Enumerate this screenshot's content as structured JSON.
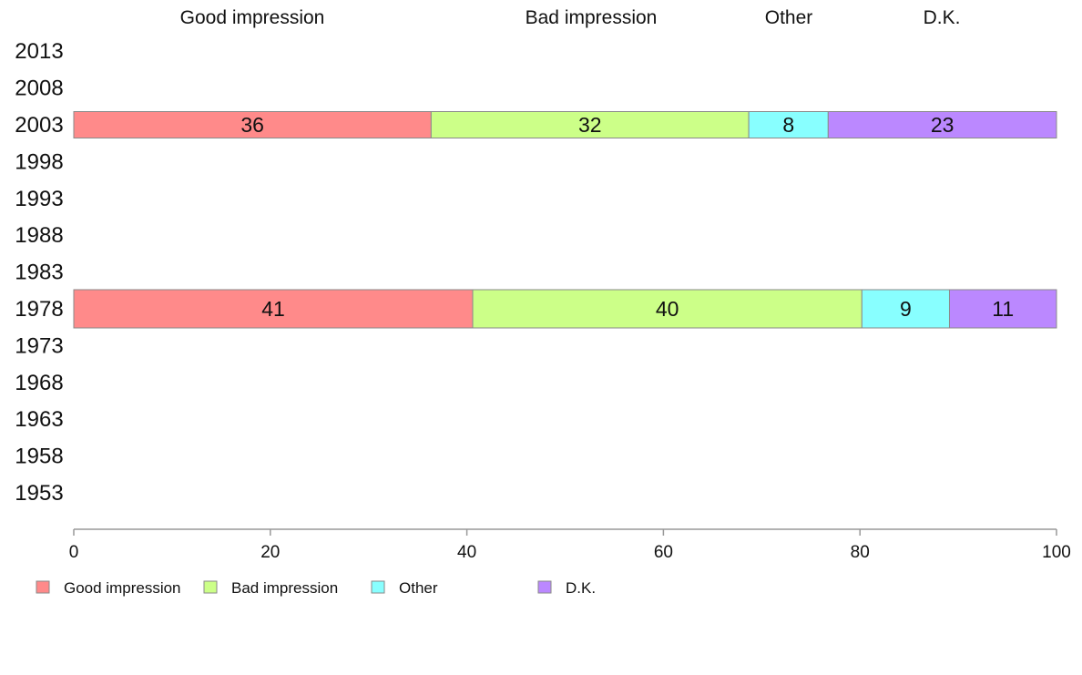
{
  "chart_data": {
    "type": "bar",
    "orientation": "horizontal",
    "stacked": true,
    "categories": [
      "2013",
      "2008",
      "2003",
      "1998",
      "1993",
      "1988",
      "1983",
      "1978",
      "1973",
      "1968",
      "1963",
      "1958",
      "1953"
    ],
    "series": [
      {
        "name": "Good impression",
        "color": "#ff8a8a",
        "values": [
          null,
          null,
          36,
          null,
          null,
          null,
          null,
          41,
          null,
          null,
          null,
          null,
          null
        ]
      },
      {
        "name": "Bad impression",
        "color": "#ccff88",
        "values": [
          null,
          null,
          32,
          null,
          null,
          null,
          null,
          40,
          null,
          null,
          null,
          null,
          null
        ]
      },
      {
        "name": "Other",
        "color": "#88ffff",
        "values": [
          null,
          null,
          8,
          null,
          null,
          null,
          null,
          9,
          null,
          null,
          null,
          null,
          null
        ]
      },
      {
        "name": "D.K.",
        "color": "#bb88ff",
        "values": [
          null,
          null,
          23,
          null,
          null,
          null,
          null,
          11,
          null,
          null,
          null,
          null,
          null
        ]
      }
    ],
    "xlim": [
      0,
      100
    ],
    "xticks": [
      "0",
      "20",
      "40",
      "60",
      "80",
      "100"
    ],
    "grid": false,
    "legend_position": "bottom-left",
    "column_headers": [
      "Good impression",
      "Bad impression",
      "Other",
      "D.K."
    ],
    "title": "",
    "xlabel": "",
    "ylabel": ""
  }
}
